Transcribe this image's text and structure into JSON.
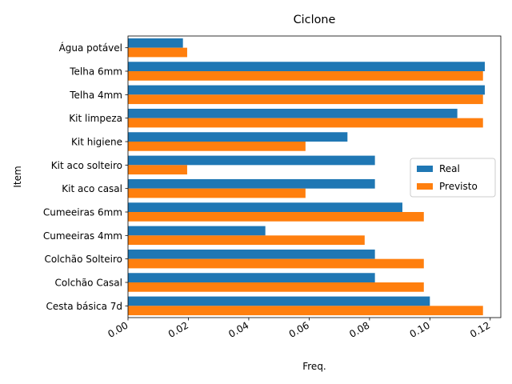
{
  "chart_data": {
    "type": "bar",
    "orientation": "horizontal",
    "title": "Ciclone",
    "xlabel": "Freq.",
    "ylabel": "Item",
    "xlim": [
      0,
      0.1235
    ],
    "xticks": [
      "0.00",
      "0.02",
      "0.04",
      "0.06",
      "0.08",
      "0.10",
      "0.12"
    ],
    "xtick_values": [
      0,
      0.02,
      0.04,
      0.06,
      0.08,
      0.1,
      0.12
    ],
    "categories": [
      "Cesta básica 7d",
      "Colchão Casal",
      "Colchão Solteiro",
      "Cumeeiras 4mm",
      "Cumeeiras 6mm",
      "Kit aco casal",
      "Kit aco solteiro",
      "Kit higiene",
      "Kit limpeza",
      "Telha 4mm",
      "Telha 6mm",
      "Água potável"
    ],
    "series": [
      {
        "name": "Real",
        "color": "#1f77b4",
        "values": [
          0.1,
          0.0818,
          0.0818,
          0.0455,
          0.0909,
          0.0818,
          0.0818,
          0.0727,
          0.1091,
          0.1182,
          0.1182,
          0.0182
        ]
      },
      {
        "name": "Previsto",
        "color": "#ff7f0e",
        "values": [
          0.1176,
          0.098,
          0.098,
          0.0784,
          0.098,
          0.0588,
          0.0196,
          0.0588,
          0.1176,
          0.1176,
          0.1176,
          0.0196
        ]
      }
    ],
    "legend": "center-right",
    "grid": false
  }
}
